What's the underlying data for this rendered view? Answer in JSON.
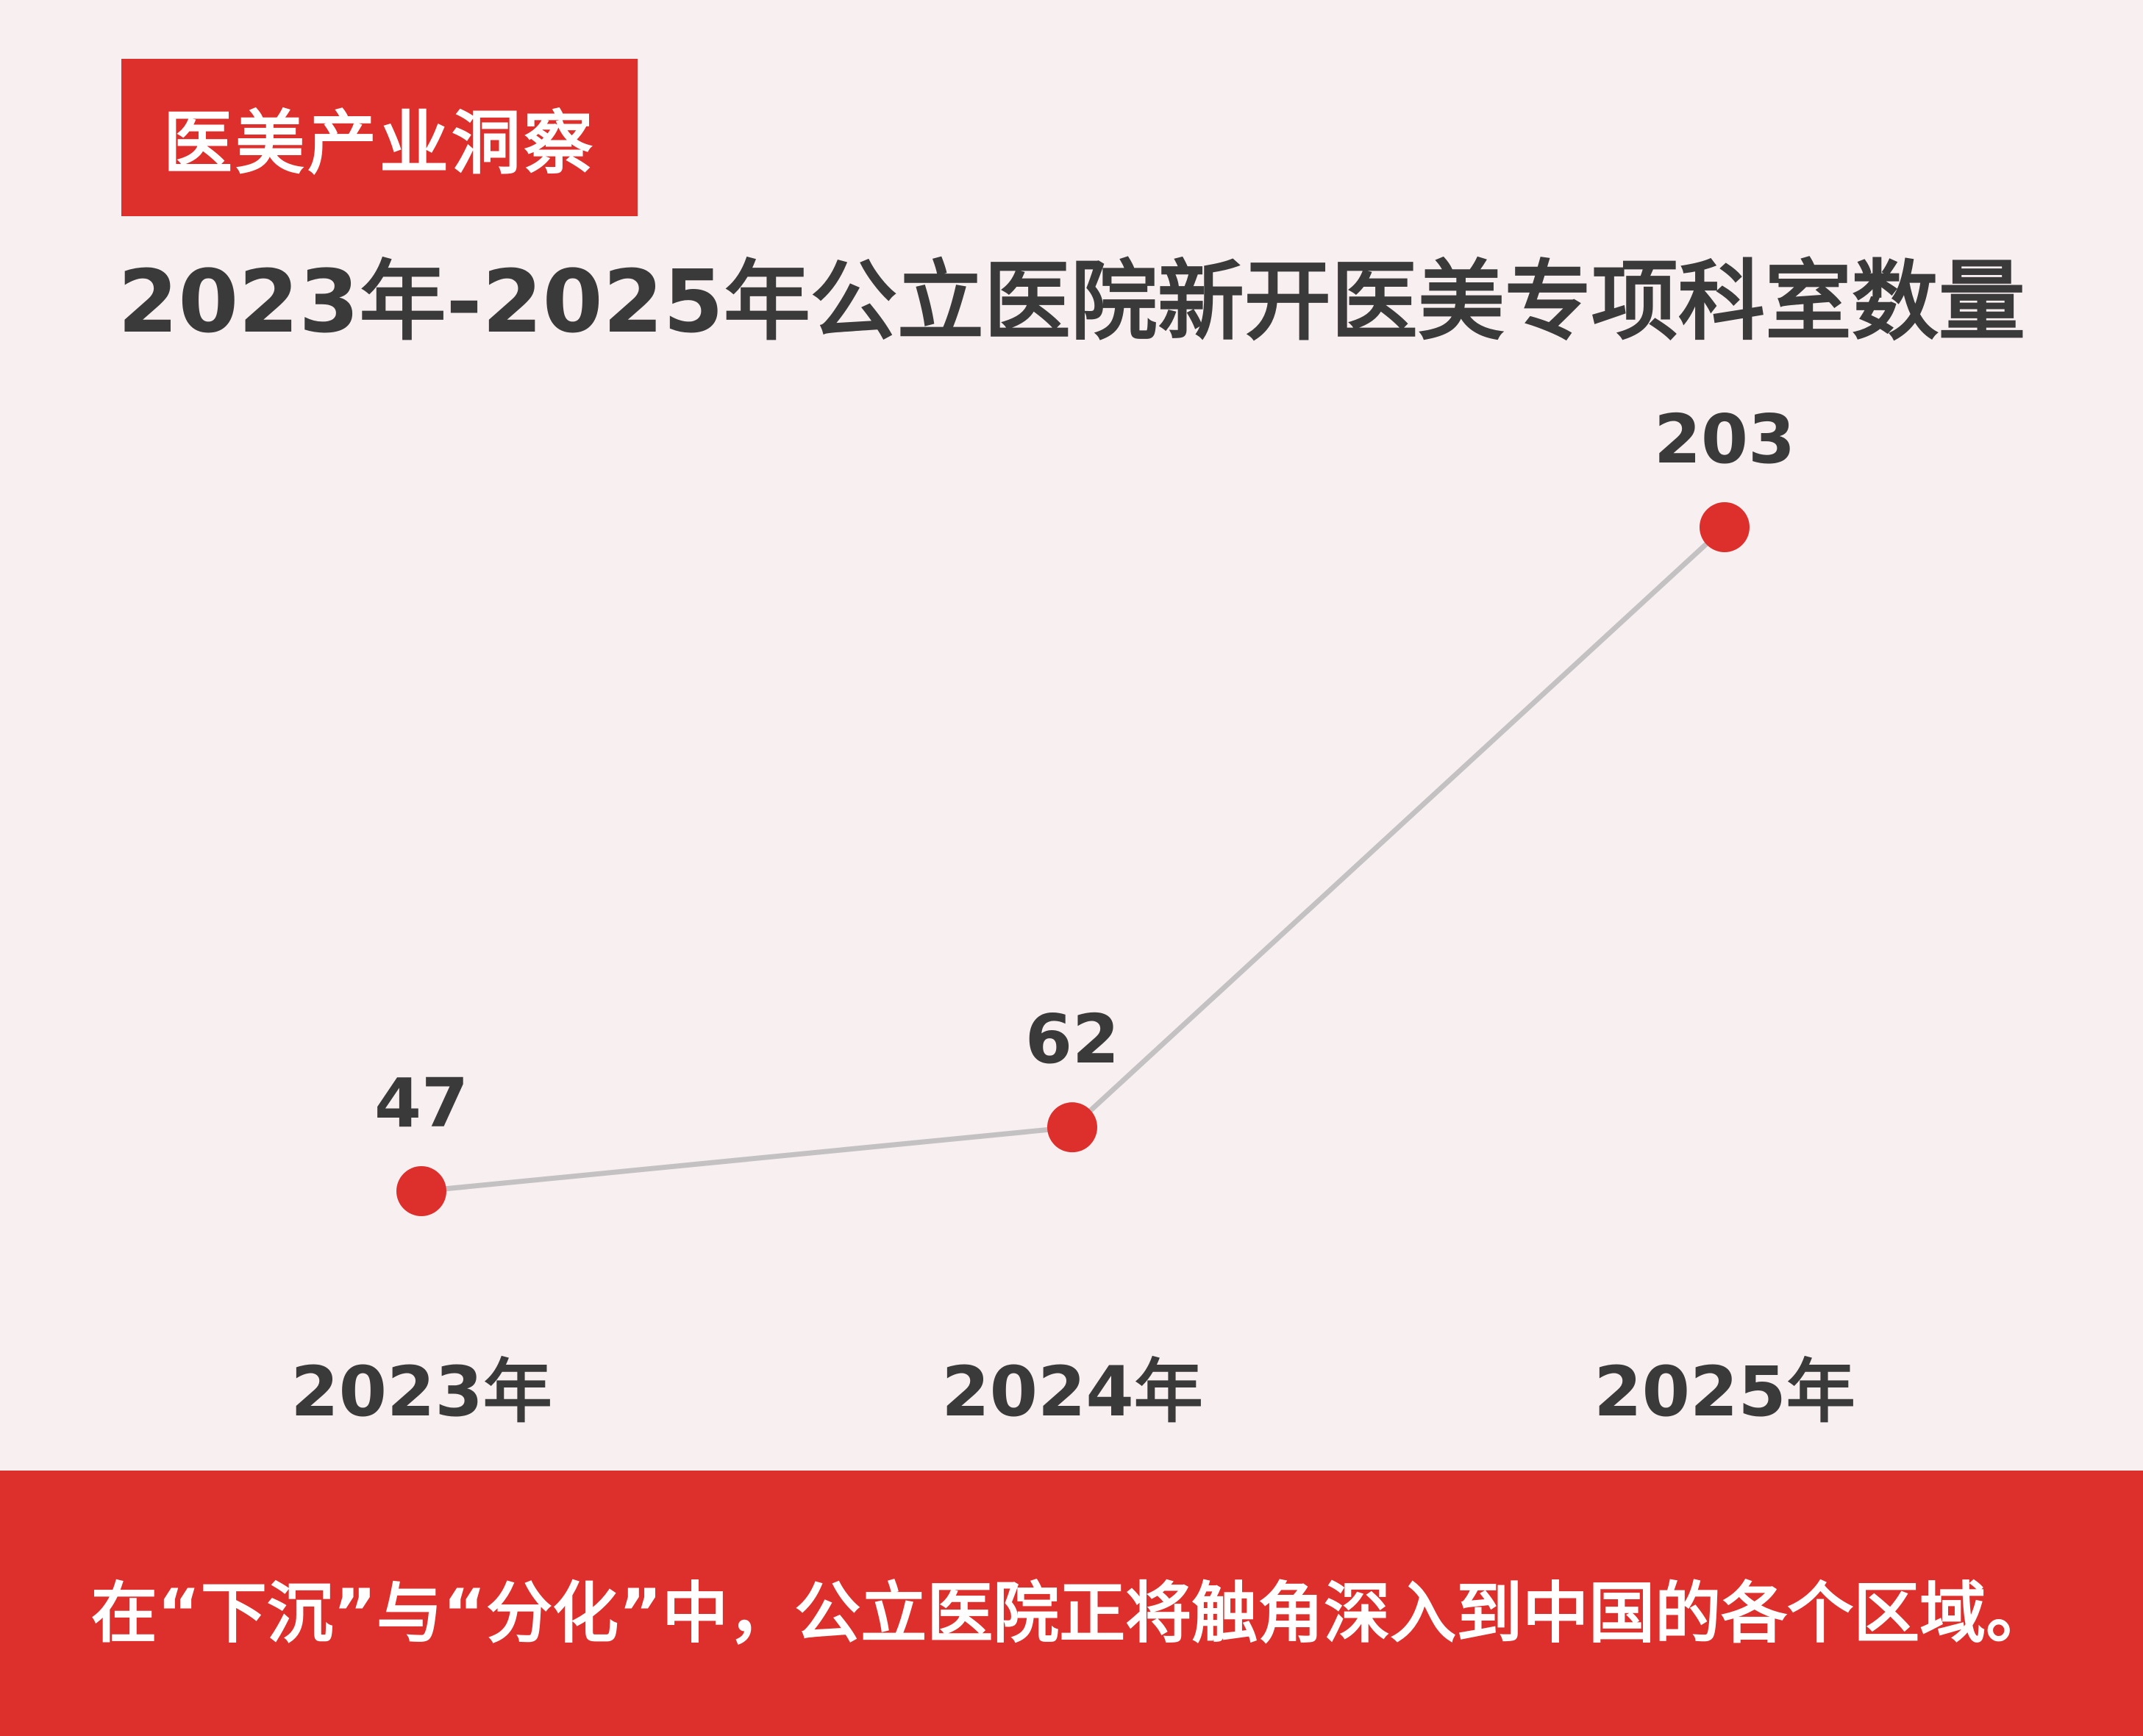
{
  "tag": {
    "label": "医美产业洞察"
  },
  "footer": {
    "text": "在“下沉”与“分化”中，公立医院正将触角深入到中国的各个区域。"
  },
  "colors": {
    "accent": "#dd2f2c",
    "background": "#f8eff1",
    "line": "#c4c1c2",
    "text": "#3a3a3a"
  },
  "chart_data": {
    "type": "line",
    "title": "2023年-2025年公立医院新开医美专项科室数量",
    "categories": [
      "2023年",
      "2024年",
      "2025年"
    ],
    "values": [
      47,
      62,
      203
    ],
    "xlabel": "",
    "ylabel": "",
    "grid": false,
    "legend": "none",
    "data_labels": [
      "47",
      "62",
      "203"
    ]
  }
}
